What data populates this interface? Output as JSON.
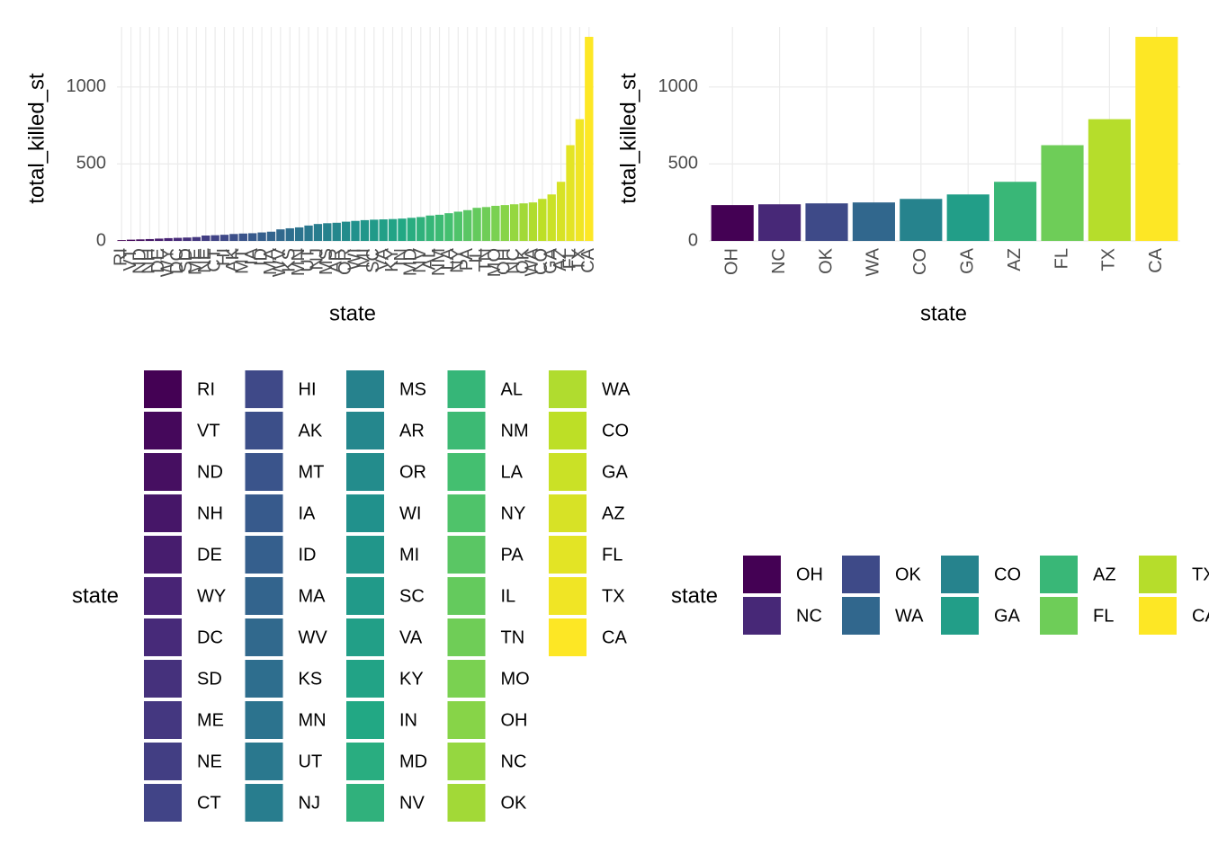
{
  "chart_data": [
    {
      "type": "bar",
      "x_label": "state",
      "y_label": "total_killed_st",
      "legend_title": "state",
      "palette": "viridis",
      "grid": true,
      "categories": [
        "RI",
        "VT",
        "ND",
        "NH",
        "DE",
        "WY",
        "DC",
        "SD",
        "ME",
        "NE",
        "CT",
        "HI",
        "AK",
        "MT",
        "IA",
        "ID",
        "MA",
        "WV",
        "KS",
        "MN",
        "UT",
        "NJ",
        "MS",
        "AR",
        "OR",
        "WI",
        "MI",
        "SC",
        "VA",
        "KY",
        "IN",
        "MD",
        "NV",
        "AL",
        "NM",
        "LA",
        "NY",
        "PA",
        "IL",
        "TN",
        "MO",
        "OH",
        "NC",
        "OK",
        "WA",
        "CO",
        "GA",
        "AZ",
        "FL",
        "TX",
        "CA"
      ],
      "values": [
        5,
        8,
        10,
        12,
        15,
        18,
        20,
        22,
        25,
        35,
        37,
        40,
        45,
        48,
        50,
        55,
        60,
        75,
        82,
        88,
        100,
        110,
        115,
        118,
        125,
        130,
        135,
        138,
        140,
        142,
        145,
        150,
        155,
        165,
        170,
        180,
        190,
        200,
        215,
        220,
        228,
        233,
        238,
        244,
        250,
        273,
        302,
        384,
        622,
        791,
        1326
      ],
      "ylim": [
        0,
        1390
      ],
      "yticks": [
        0,
        500,
        1000
      ]
    },
    {
      "type": "bar",
      "x_label": "state",
      "y_label": "total_killed_st",
      "legend_title": "state",
      "palette": "viridis",
      "grid": true,
      "categories": [
        "OH",
        "NC",
        "OK",
        "WA",
        "CO",
        "GA",
        "AZ",
        "FL",
        "TX",
        "CA"
      ],
      "values": [
        233,
        238,
        244,
        250,
        273,
        302,
        384,
        622,
        791,
        1326
      ],
      "ylim": [
        0,
        1390
      ],
      "yticks": [
        0,
        500,
        1000
      ]
    }
  ]
}
